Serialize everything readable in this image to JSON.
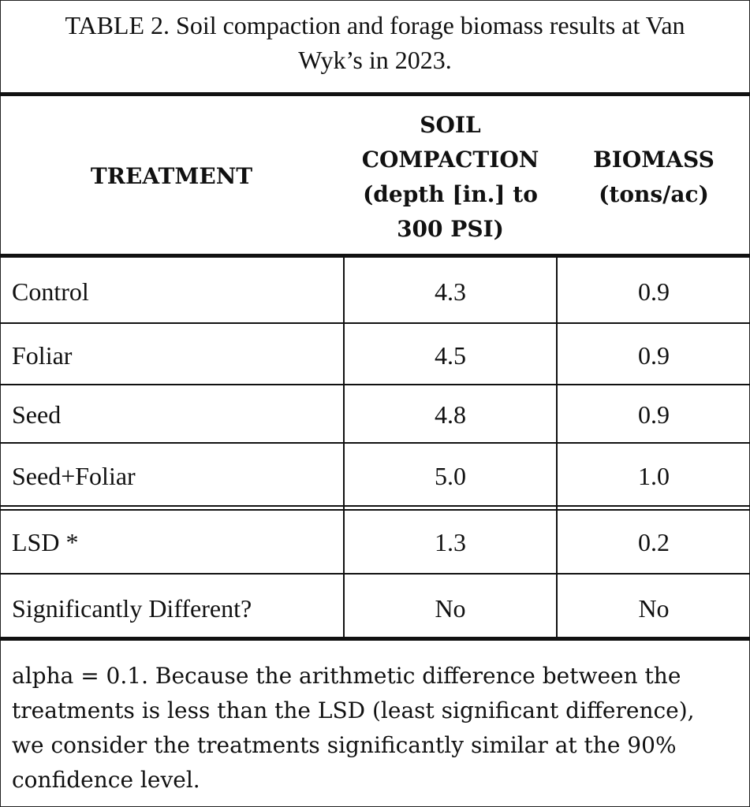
{
  "caption": {
    "line1": "TABLE 2. Soil compaction and forage biomass results at Van",
    "line2": "Wyk’s in 2023."
  },
  "header": {
    "treatment": "TREATMENT",
    "soil_line1": "SOIL",
    "soil_line2": "COMPACTION",
    "soil_line3": "(depth [in.] to",
    "soil_line4": "300 PSI)",
    "biomass_line1": "BIOMASS",
    "biomass_line2": "(tons/ac)"
  },
  "rows": [
    {
      "treatment": "Control",
      "soil": "4.3",
      "biomass": "0.9"
    },
    {
      "treatment": "Foliar",
      "soil": "4.5",
      "biomass": "0.9"
    },
    {
      "treatment": "Seed",
      "soil": "4.8",
      "biomass": "0.9"
    },
    {
      "treatment": "Seed+Foliar",
      "soil": "5.0",
      "biomass": "1.0"
    },
    {
      "treatment": "LSD *",
      "soil": "1.3",
      "biomass": "0.2"
    },
    {
      "treatment": "Significantly Different?",
      "soil": "No",
      "biomass": "No"
    }
  ],
  "footnote": {
    "line1": "alpha = 0.1. Because the arithmetic difference between the",
    "line2": "treatments is less than the LSD (least significant difference),",
    "line3": "we consider the treatments significantly similar at the 90%",
    "line4": "confidence level."
  }
}
